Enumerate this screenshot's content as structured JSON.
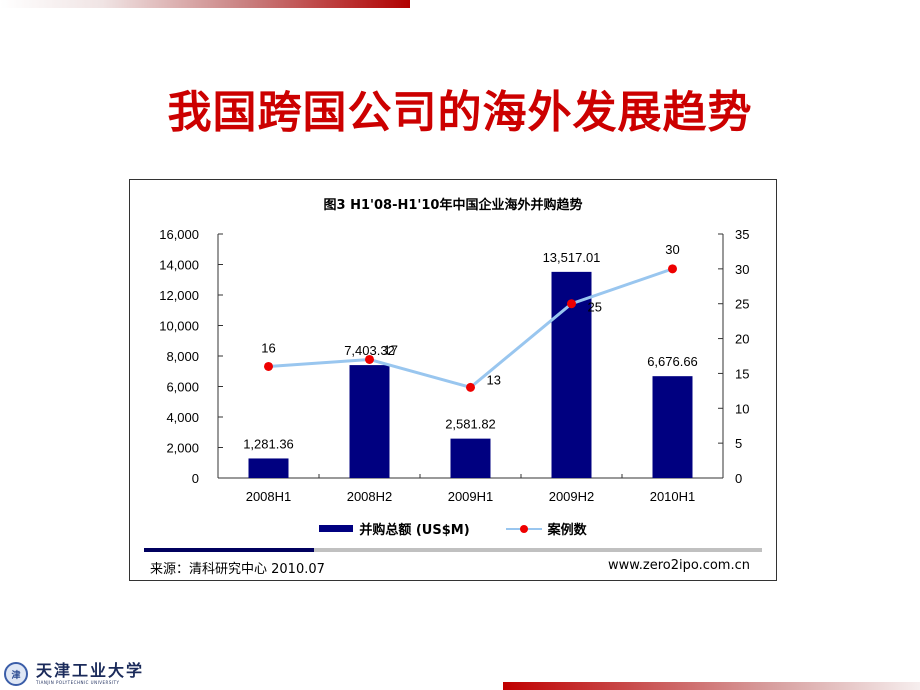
{
  "slide": {
    "title": "我国跨国公司的海外发展趋势",
    "accent_color": "#cc0000"
  },
  "logo": {
    "emblem": "津",
    "name_cn": "天津工业大学",
    "name_en": "TIANJIN POLYTECHNIC UNIVERSITY"
  },
  "chart": {
    "title": "图3 H1'08-H1'10年中国企业海外并购趋势",
    "legend": {
      "bar_label": "并购总额 (US$M)",
      "line_label": "案例数"
    },
    "source_left": "来源：清科研究中心 2010.07",
    "source_right": "www.zero2ipo.com.cn"
  },
  "chart_data": {
    "type": "bar+line",
    "title": "图3 H1'08-H1'10年中国企业海外并购趋势",
    "categories": [
      "2008H1",
      "2008H2",
      "2009H1",
      "2009H2",
      "2010H1"
    ],
    "series": [
      {
        "name": "并购总额 (US$M)",
        "type": "bar",
        "axis": "left",
        "color": "#000080",
        "values": [
          1281.36,
          7403.32,
          2581.82,
          13517.01,
          6676.66
        ],
        "labels": [
          "1,281.36",
          "7,403.32",
          "2,581.82",
          "13,517.01",
          "6,676.66"
        ]
      },
      {
        "name": "案例数",
        "type": "line",
        "axis": "right",
        "color": "#99c6ef",
        "marker_color": "#ee0000",
        "values": [
          16,
          17,
          13,
          25,
          30
        ],
        "labels": [
          "16",
          "17",
          "13",
          "25",
          "30"
        ]
      }
    ],
    "y_left": {
      "ylim": [
        0,
        16000
      ],
      "ticks": [
        "0",
        "2,000",
        "4,000",
        "6,000",
        "8,000",
        "10,000",
        "12,000",
        "14,000",
        "16,000"
      ]
    },
    "y_right": {
      "ylim": [
        0,
        35
      ],
      "ticks": [
        "0",
        "5",
        "10",
        "15",
        "20",
        "25",
        "30",
        "35"
      ]
    },
    "xlabel": "",
    "ylabel": "",
    "grid": false,
    "legend_position": "bottom",
    "source": "来源：清科研究中心 2010.07",
    "source_url_text": "www.zero2ipo.com.cn"
  }
}
